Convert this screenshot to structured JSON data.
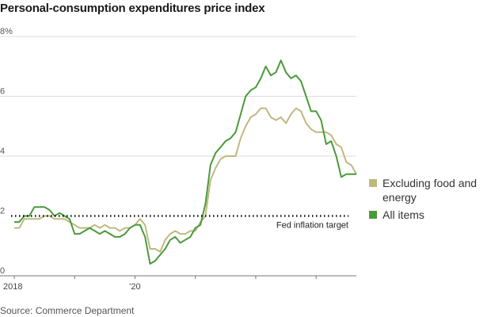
{
  "chart_data": {
    "type": "line",
    "title": "Personal-consumption expenditures price index",
    "xlabel": "",
    "ylabel": "",
    "ylim": [
      0,
      8
    ],
    "x_ticks": [
      "2018",
      "'20"
    ],
    "y_ticks": [
      "0",
      "2",
      "4",
      "6",
      "8%"
    ],
    "x_range": [
      "2018-01",
      "2023-09"
    ],
    "grid": true,
    "legend": "right",
    "x": [
      "2018-01",
      "2018-02",
      "2018-03",
      "2018-04",
      "2018-05",
      "2018-06",
      "2018-07",
      "2018-08",
      "2018-09",
      "2018-10",
      "2018-11",
      "2018-12",
      "2019-01",
      "2019-02",
      "2019-03",
      "2019-04",
      "2019-05",
      "2019-06",
      "2019-07",
      "2019-08",
      "2019-09",
      "2019-10",
      "2019-11",
      "2019-12",
      "2020-01",
      "2020-02",
      "2020-03",
      "2020-04",
      "2020-05",
      "2020-06",
      "2020-07",
      "2020-08",
      "2020-09",
      "2020-10",
      "2020-11",
      "2020-12",
      "2021-01",
      "2021-02",
      "2021-03",
      "2021-04",
      "2021-05",
      "2021-06",
      "2021-07",
      "2021-08",
      "2021-09",
      "2021-10",
      "2021-11",
      "2021-12",
      "2022-01",
      "2022-02",
      "2022-03",
      "2022-04",
      "2022-05",
      "2022-06",
      "2022-07",
      "2022-08",
      "2022-09",
      "2022-10",
      "2022-11",
      "2022-12",
      "2023-01",
      "2023-02",
      "2023-03",
      "2023-04",
      "2023-05",
      "2023-06",
      "2023-07",
      "2023-08",
      "2023-09"
    ],
    "series": [
      {
        "name": "Excluding food and energy",
        "color": "#bfb97f",
        "values": [
          1.6,
          1.6,
          1.9,
          1.9,
          1.9,
          1.9,
          2.0,
          2.0,
          1.9,
          1.9,
          1.9,
          1.8,
          1.7,
          1.6,
          1.6,
          1.6,
          1.7,
          1.6,
          1.7,
          1.6,
          1.6,
          1.5,
          1.6,
          1.6,
          1.7,
          1.9,
          1.7,
          0.9,
          0.9,
          0.8,
          1.2,
          1.4,
          1.5,
          1.4,
          1.4,
          1.5,
          1.5,
          1.8,
          2.0,
          3.2,
          3.6,
          3.9,
          4.0,
          4.0,
          4.0,
          4.6,
          5.0,
          5.3,
          5.4,
          5.6,
          5.6,
          5.3,
          5.2,
          5.3,
          5.1,
          5.4,
          5.6,
          5.5,
          5.1,
          4.9,
          4.8,
          4.8,
          4.8,
          4.7,
          4.4,
          4.3,
          3.8,
          3.7,
          3.4
        ]
      },
      {
        "name": "All items",
        "color": "#4a9a3b",
        "values": [
          1.8,
          1.8,
          2.0,
          2.0,
          2.3,
          2.3,
          2.3,
          2.2,
          2.0,
          2.1,
          2.0,
          1.9,
          1.4,
          1.4,
          1.5,
          1.6,
          1.5,
          1.4,
          1.5,
          1.4,
          1.3,
          1.3,
          1.4,
          1.6,
          1.7,
          1.7,
          1.3,
          0.4,
          0.5,
          0.7,
          0.9,
          1.2,
          1.3,
          1.1,
          1.2,
          1.3,
          1.6,
          1.7,
          2.4,
          3.7,
          4.1,
          4.3,
          4.5,
          4.6,
          4.8,
          5.4,
          6.0,
          6.2,
          6.3,
          6.6,
          7.0,
          6.7,
          6.8,
          7.2,
          6.8,
          6.6,
          6.7,
          6.5,
          6.0,
          5.5,
          5.5,
          5.2,
          4.4,
          4.5,
          4.0,
          3.3,
          3.4,
          3.4,
          3.4
        ]
      }
    ],
    "reference_line": {
      "value": 2,
      "label": "Fed inflation target"
    }
  },
  "source": "Source: Commerce Department",
  "legend": {
    "items": [
      {
        "label": "Excluding food and energy",
        "color": "#bfb97f"
      },
      {
        "label": "All items",
        "color": "#4a9a3b"
      }
    ]
  }
}
